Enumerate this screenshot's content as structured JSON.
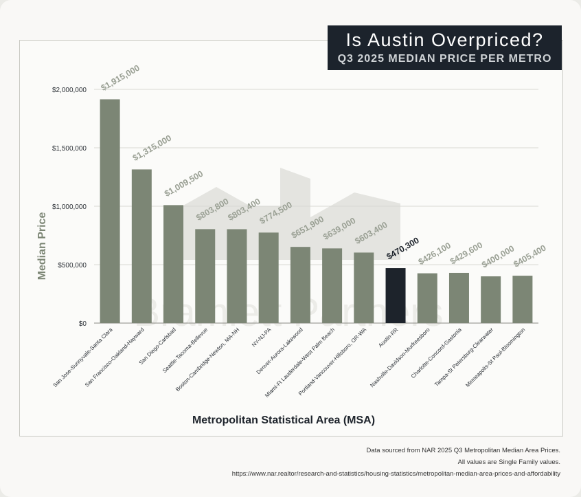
{
  "title": "Is Austin Overpriced?",
  "subtitle": "Q3 2025 MEDIAN PRICE PER METRO",
  "watermark": "Bramlett Partners",
  "footer": {
    "line1": "Data sourced from NAR 2025 Q3 Metropolitan Median Area Prices.",
    "line2": "All values are Single Family values.",
    "line3": "https://www.nar.realtor/research-and-statistics/housing-statistics/metropolitan-median-area-prices-and-affordability"
  },
  "colors": {
    "bar": "#7c8675",
    "highlight": "#1d232b",
    "axis_text": "#7c8675",
    "label": "#9aa094",
    "highlight_label": "#1d232b"
  },
  "chart_data": {
    "type": "bar",
    "xlabel": "Metropolitan Statistical Area (MSA)",
    "ylabel": "Median Price",
    "ylim": [
      0,
      2000000
    ],
    "yticks": [
      0,
      500000,
      1000000,
      1500000,
      2000000
    ],
    "ytick_labels": [
      "$0",
      "$500,000",
      "$1,000,000",
      "$1,500,000",
      "$2,000,000"
    ],
    "grid": true,
    "highlight_index": 9,
    "categories": [
      "San Jose-Sunnyvale-Santa Clara",
      "San Francisco-Oakland-Hayward",
      "San Diego-Carlsbad",
      "Seattle-Tacoma-Bellevue",
      "Boston-Cambridge-Newton, MA-NH",
      "NY-NJ-PA",
      "Denver-Aurora-Lakewood",
      "Miami-Ft Lauderdale-West Palm Beach",
      "Portland-Vancouver-Hillsboro, OR-WA",
      "Austin-RR",
      "Nashville-Davidson-Murfreesboro",
      "Charlotte-Concord-Gastonia",
      "Tampa-St Petersburg-Clearwater",
      "Minneapolis-St Paul-Bloomington"
    ],
    "values": [
      1915000,
      1315000,
      1009500,
      803800,
      803400,
      774500,
      651900,
      639000,
      603400,
      470300,
      426100,
      429600,
      400000,
      405400
    ],
    "value_labels": [
      "$1,915,000",
      "$1,315,000",
      "$1,009,500",
      "$803,800",
      "$803,400",
      "$774,500",
      "$651,900",
      "$639,000",
      "$603,400",
      "$470,300",
      "$426,100",
      "$429,600",
      "$400,000",
      "$405,400"
    ]
  }
}
